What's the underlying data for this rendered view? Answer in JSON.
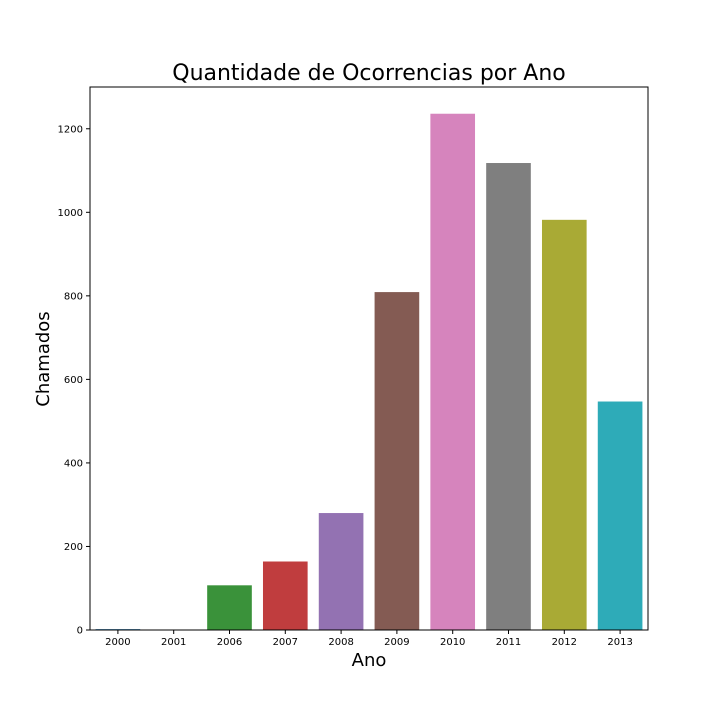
{
  "chart_data": {
    "type": "bar",
    "title": "Quantidade de Ocorrencias por Ano",
    "xlabel": "Ano",
    "ylabel": "Chamados",
    "categories": [
      "2000",
      "2001",
      "2006",
      "2007",
      "2008",
      "2009",
      "2010",
      "2011",
      "2012",
      "2013"
    ],
    "values": [
      2,
      0,
      107,
      164,
      280,
      809,
      1236,
      1118,
      982,
      547
    ],
    "colors": [
      "#1f77b4",
      "#ff7f0e",
      "#3a923a",
      "#c03d3e",
      "#9372b2",
      "#845b53",
      "#d684bd",
      "#7f7f7f",
      "#a9aa35",
      "#2eabb8"
    ],
    "yticks": [
      "0",
      "200",
      "400",
      "600",
      "800",
      "1000",
      "1200"
    ],
    "ylim": [
      0,
      1300
    ],
    "grid": false,
    "legend": "none"
  }
}
